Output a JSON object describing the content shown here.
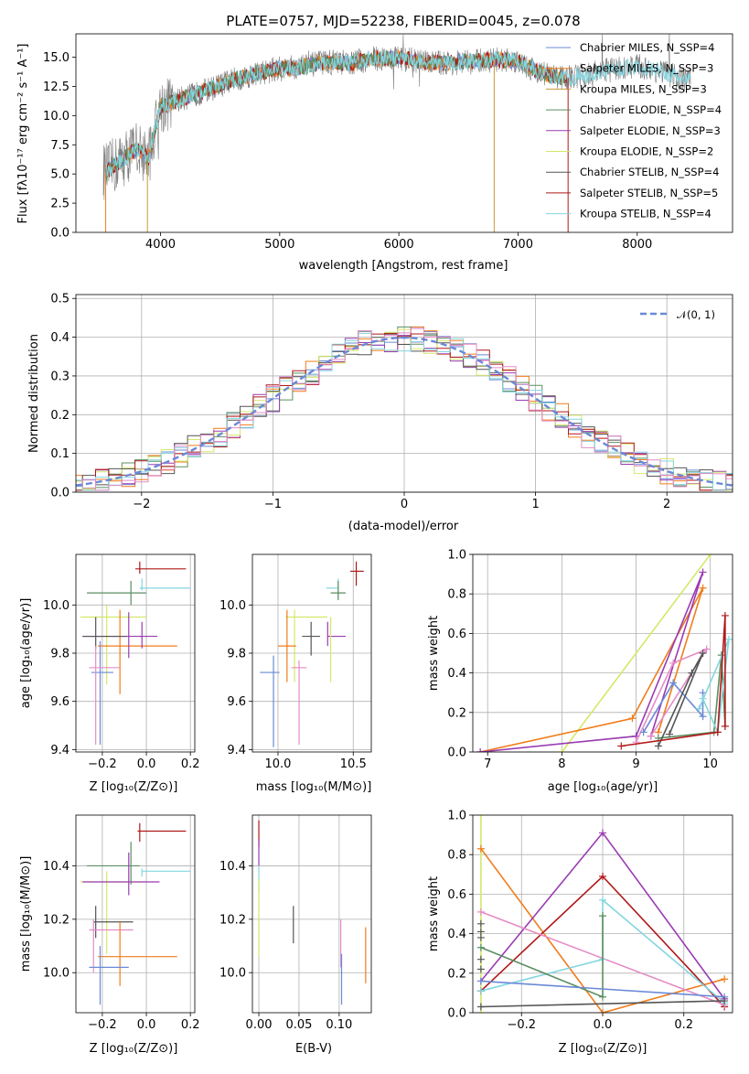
{
  "colors": [
    "#6a89d6",
    "#f07c1a",
    "#c79a3a",
    "#5b8f62",
    "#9a3bb2",
    "#d4e86a",
    "#555555",
    "#b01818",
    "#83d6e0",
    "#e58cc6"
  ],
  "panels": {
    "spectrum": {
      "title": "PLATE=0757, MJD=52238, FIBERID=0045, z=0.078",
      "xlabel": "wavelength [Angstrom, rest frame]",
      "ylabel": "Flux [fλ10⁻¹⁷ erg cm⁻² s⁻¹ A⁻¹]",
      "xlim": [
        3290,
        8800
      ],
      "ylim": [
        0,
        17
      ],
      "xticks": [
        4000,
        5000,
        6000,
        7000,
        8000
      ],
      "yticks": [
        "0.0",
        "2.5",
        "5.0",
        "7.5",
        "10.0",
        "12.5",
        "15.0"
      ],
      "grid": false,
      "legend": [
        "Chabrier MILES, N_SSP=4",
        "Salpeter MILES, N_SSP=3",
        "Kroupa MILES, N_SSP=3",
        "Chabrier ELODIE, N_SSP=4",
        "Salpeter ELODIE, N_SSP=3",
        "Kroupa ELODIE, N_SSP=2",
        "Chabrier STELIB, N_SSP=4",
        "Salpeter STELIB, N_SSP=5",
        "Kroupa STELIB, N_SSP=4"
      ]
    },
    "residuals": {
      "xlabel": "(data-model)/error",
      "ylabel": "Normed distribution",
      "xlim": [
        -2.5,
        2.5
      ],
      "ylim": [
        0,
        0.51
      ],
      "xticks": [
        "−2",
        "−1",
        "0",
        "1",
        "2"
      ],
      "yticks": [
        "0.0",
        "0.1",
        "0.2",
        "0.3",
        "0.4",
        "0.5"
      ],
      "legend": "𝒩(0, 1)"
    },
    "age_z": {
      "xlabel": "Z [log₁₀(Z/Z⊙)]",
      "ylabel": "age  [log₁₀(age/yr)]",
      "xlim": [
        -0.32,
        0.22
      ],
      "ylim": [
        9.39,
        10.21
      ],
      "xticks": [
        "−0.2",
        "0.0",
        "0.2"
      ],
      "yticks": [
        "9.4",
        "9.6",
        "9.8",
        "10.0"
      ]
    },
    "age_mass": {
      "xlabel": "mass [log₁₀(M/M⊙)]",
      "xlim": [
        9.83,
        10.62
      ],
      "ylim": [
        9.39,
        10.21
      ],
      "xticks": [
        "10.0",
        "10.5"
      ],
      "yticks": [
        "9.4",
        "9.6",
        "9.8",
        "10.0"
      ]
    },
    "weight_age": {
      "xlabel": "age  [log₁₀(age/yr)]",
      "ylabel": "mass weight",
      "xlim": [
        6.8,
        10.3
      ],
      "ylim": [
        0,
        1
      ],
      "xticks": [
        "7",
        "8",
        "9",
        "10"
      ],
      "yticks": [
        "0.0",
        "0.2",
        "0.4",
        "0.6",
        "0.8",
        "1.0"
      ]
    },
    "mass_z": {
      "xlabel": "Z [log₁₀(Z/Z⊙)]",
      "ylabel": "mass [log₁₀(M/M⊙)]",
      "xlim": [
        -0.32,
        0.22
      ],
      "ylim": [
        9.85,
        10.59
      ],
      "xticks": [
        "−0.2",
        "0.0",
        "0.2"
      ],
      "yticks": [
        "10.0",
        "10.2",
        "10.4"
      ]
    },
    "mass_ebv": {
      "xlabel": "E(B-V)",
      "xlim": [
        -0.008,
        0.14
      ],
      "ylim": [
        9.85,
        10.59
      ],
      "xticks": [
        "0.00",
        "0.05",
        "0.10"
      ],
      "yticks": [
        "10.0",
        "10.2",
        "10.4"
      ]
    },
    "weight_z": {
      "xlabel": "Z [log₁₀(Z/Z⊙)]",
      "ylabel": "mass weight",
      "xlim": [
        -0.32,
        0.32
      ],
      "ylim": [
        0,
        1
      ],
      "xticks": [
        "−0.2",
        "0.0",
        "0.2"
      ],
      "yticks": [
        "0.0",
        "0.2",
        "0.4",
        "0.6",
        "0.8",
        "1.0"
      ]
    }
  },
  "chart_data": [
    {
      "type": "line",
      "title": "PLATE=0757, MJD=52238, FIBERID=0045, z=0.078",
      "xlabel": "wavelength [Angstrom, rest frame]",
      "ylabel": "Flux",
      "xlim": [
        3290,
        8800
      ],
      "ylim": [
        0,
        17
      ],
      "series": [
        {
          "name": "Chabrier MILES, N_SSP=4",
          "x": [
            3550,
            3800,
            3900,
            4000,
            4200,
            4400,
            4600,
            4800,
            5000,
            5200,
            5400,
            5600,
            5800,
            6000,
            6200,
            6400,
            6600,
            6800,
            7000,
            7200,
            7400
          ],
          "y": [
            5.0,
            7.0,
            6.5,
            11.0,
            11.5,
            12.0,
            13.0,
            13.5,
            14.0,
            14.2,
            14.5,
            14.5,
            14.8,
            14.8,
            14.5,
            14.5,
            14.5,
            14.8,
            14.7,
            13.5,
            13.0
          ]
        },
        {
          "name": "Kroupa STELIB, N_SSP=4",
          "x": [
            3550,
            3800,
            3900,
            4000,
            4200,
            4400,
            4600,
            4800,
            5000,
            5200,
            5400,
            5600,
            5800,
            6000,
            6200,
            6400,
            6600,
            6800,
            7000,
            7200,
            7400,
            7600,
            7800,
            8000,
            8200,
            8400
          ],
          "y": [
            5.2,
            7.2,
            6.4,
            10.8,
            11.5,
            12.2,
            13.0,
            13.6,
            14.0,
            14.2,
            14.6,
            14.5,
            14.9,
            14.9,
            14.6,
            14.5,
            14.6,
            14.8,
            14.7,
            13.6,
            13.2,
            13.5,
            14.0,
            14.2,
            13.8,
            13.0
          ]
        }
      ]
    },
    {
      "type": "bar",
      "title": "",
      "xlabel": "(data-model)/error",
      "ylabel": "Normed distribution",
      "categories": [
        -2.4,
        -2.2,
        -2.0,
        -1.8,
        -1.6,
        -1.4,
        -1.2,
        -1.0,
        -0.8,
        -0.6,
        -0.4,
        -0.2,
        0.0,
        0.2,
        0.4,
        0.6,
        0.8,
        1.0,
        1.2,
        1.4,
        1.6,
        1.8,
        2.0,
        2.2,
        2.4
      ],
      "series": [
        {
          "name": "",
          "values": [
            0.02,
            0.04,
            0.07,
            0.09,
            0.13,
            0.17,
            0.22,
            0.26,
            0.31,
            0.34,
            0.37,
            0.41,
            0.4,
            0.4,
            0.36,
            0.33,
            0.28,
            0.22,
            0.17,
            0.13,
            0.1,
            0.07,
            0.04,
            0.03,
            0.02
          ]
        },
        {
          "name": "N(0,1)",
          "values": [
            0.018,
            0.035,
            0.054,
            0.079,
            0.111,
            0.15,
            0.194,
            0.242,
            0.29,
            0.333,
            0.368,
            0.391,
            0.399,
            0.391,
            0.368,
            0.333,
            0.29,
            0.242,
            0.194,
            0.15,
            0.111,
            0.079,
            0.054,
            0.035,
            0.018
          ]
        }
      ]
    },
    {
      "type": "scatter",
      "xlabel": "Z [log10(Z/Z_sun)]",
      "ylabel": "age [log10(age/yr)]",
      "series": [
        {
          "name": "",
          "x": [
            -0.03,
            -0.02,
            -0.07,
            -0.18,
            -0.24,
            -0.29,
            -0.23,
            -0.21,
            -0.11
          ],
          "y": [
            10.15,
            10.07,
            10.05,
            9.95,
            9.83,
            9.87,
            9.87,
            9.72,
            9.74
          ]
        }
      ]
    },
    {
      "type": "scatter",
      "xlabel": "age [log10(age/yr)]",
      "ylabel": "mass weight",
      "series": [
        {
          "name": "",
          "x": [
            6.9,
            8.95,
            9.9
          ],
          "y": [
            0.0,
            0.17,
            0.83
          ]
        },
        {
          "name": "",
          "x": [
            6.9,
            9.0,
            9.9
          ],
          "y": [
            0.0,
            0.08,
            0.91
          ]
        },
        {
          "name": "",
          "x": [
            8.0,
            10.0
          ],
          "y": [
            0.0,
            1.0
          ]
        },
        {
          "name": "",
          "x": [
            9.3,
            9.8,
            10.2
          ],
          "y": [
            0.03,
            0.4,
            0.05
          ]
        },
        {
          "name": "",
          "x": [
            8.8,
            9.2,
            10.15,
            10.2
          ],
          "y": [
            0.03,
            0.05,
            0.69,
            0.13
          ]
        }
      ]
    },
    {
      "type": "scatter",
      "xlabel": "Z [log10(Z/Z_sun)]",
      "ylabel": "mass weight",
      "series": [
        {
          "name": "",
          "x": [
            -0.3,
            0.0,
            0.3
          ],
          "y": [
            0.16,
            0.91,
            0.07
          ]
        },
        {
          "name": "",
          "x": [
            -0.3,
            0.0,
            0.3
          ],
          "y": [
            0.03,
            0.0,
            0.17
          ]
        },
        {
          "name": "",
          "x": [
            -0.3,
            0.0,
            0.3
          ],
          "y": [
            0.11,
            0.69,
            0.03
          ]
        }
      ]
    }
  ]
}
